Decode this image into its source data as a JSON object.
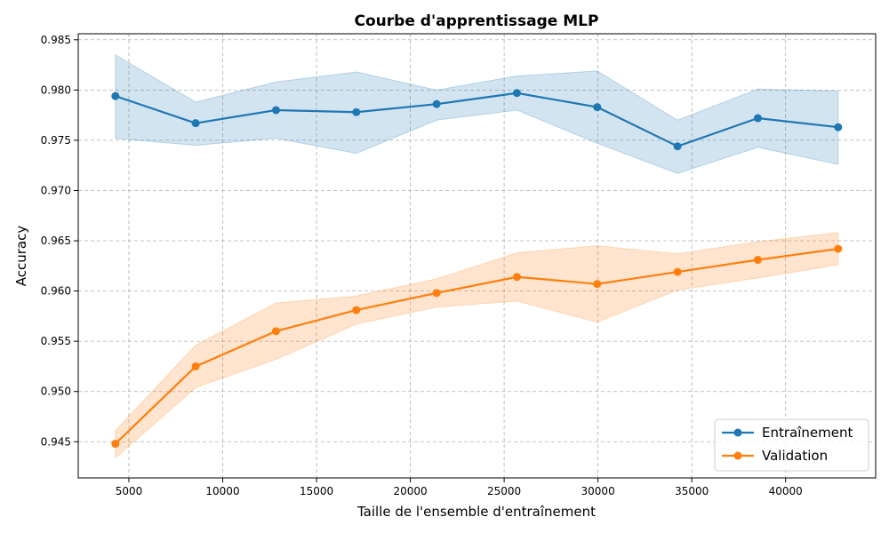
{
  "chart_data": {
    "type": "line",
    "title": "Courbe d'apprentissage MLP",
    "xlabel": "Taille de l'ensemble d'entraînement",
    "ylabel": "Accuracy",
    "xlim": [
      2300,
      44800
    ],
    "ylim": [
      0.9414,
      0.9856
    ],
    "xticks": [
      5000,
      10000,
      15000,
      20000,
      25000,
      30000,
      35000,
      40000
    ],
    "yticks": [
      0.945,
      0.95,
      0.955,
      0.96,
      0.965,
      0.97,
      0.975,
      0.98,
      0.985
    ],
    "grid": true,
    "legend_position": "bottom-right",
    "x": [
      4280,
      8560,
      12840,
      17120,
      21400,
      25680,
      29960,
      34240,
      38520,
      42800
    ],
    "series": [
      {
        "name": "Entraînement",
        "color": "#1f77b4",
        "band_color": "#1f77b4",
        "values": [
          0.9794,
          0.9767,
          0.978,
          0.9778,
          0.9786,
          0.9797,
          0.9783,
          0.9744,
          0.9772,
          0.9763
        ],
        "upper": [
          0.9835,
          0.9788,
          0.9808,
          0.9818,
          0.98,
          0.9814,
          0.9819,
          0.977,
          0.9801,
          0.9799
        ],
        "lower": [
          0.9752,
          0.9745,
          0.9752,
          0.9737,
          0.977,
          0.978,
          0.9747,
          0.9717,
          0.9743,
          0.9726
        ]
      },
      {
        "name": "Validation",
        "color": "#ff7f0e",
        "band_color": "#ff7f0e",
        "values": [
          0.9448,
          0.9525,
          0.956,
          0.9581,
          0.9598,
          0.9614,
          0.9607,
          0.9619,
          0.9631,
          0.9642
        ],
        "upper": [
          0.9461,
          0.9546,
          0.9588,
          0.9595,
          0.9612,
          0.9638,
          0.9645,
          0.9637,
          0.9649,
          0.9658
        ],
        "lower": [
          0.9434,
          0.9504,
          0.9532,
          0.9567,
          0.9584,
          0.959,
          0.9569,
          0.9601,
          0.9613,
          0.9626
        ]
      }
    ]
  }
}
